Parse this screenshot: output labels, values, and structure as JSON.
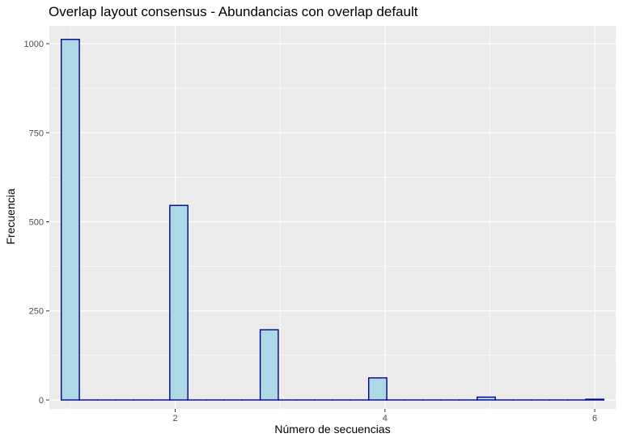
{
  "chart_data": {
    "type": "bar",
    "title": "Overlap layout consensus - Abundancias con overlap default",
    "xlabel": "Número de secuencias",
    "ylabel": "Frecuencia",
    "xlim": [
      0.8,
      6.2
    ],
    "ylim": [
      -25,
      1050
    ],
    "x_ticks": [
      2,
      4,
      6
    ],
    "x_tick_labels": [
      "2",
      "4",
      "6"
    ],
    "y_ticks": [
      0,
      250,
      500,
      750,
      1000
    ],
    "y_tick_labels": [
      "0",
      "250",
      "500",
      "750",
      "1000"
    ],
    "bin_width": 0.1724,
    "bins": [
      {
        "x": 1.0,
        "count": 1012
      },
      {
        "x": 1.1724,
        "count": 0
      },
      {
        "x": 1.3448,
        "count": 0
      },
      {
        "x": 1.5172,
        "count": 0
      },
      {
        "x": 1.6897,
        "count": 0
      },
      {
        "x": 1.8621,
        "count": 0
      },
      {
        "x": 2.0345,
        "count": 546
      },
      {
        "x": 2.2069,
        "count": 0
      },
      {
        "x": 2.3793,
        "count": 0
      },
      {
        "x": 2.5517,
        "count": 0
      },
      {
        "x": 2.7241,
        "count": 0
      },
      {
        "x": 2.8966,
        "count": 197
      },
      {
        "x": 3.069,
        "count": 0
      },
      {
        "x": 3.2414,
        "count": 0
      },
      {
        "x": 3.4138,
        "count": 0
      },
      {
        "x": 3.5862,
        "count": 0
      },
      {
        "x": 3.7586,
        "count": 0
      },
      {
        "x": 3.931,
        "count": 62
      },
      {
        "x": 4.1034,
        "count": 0
      },
      {
        "x": 4.2759,
        "count": 0
      },
      {
        "x": 4.4483,
        "count": 0
      },
      {
        "x": 4.6207,
        "count": 0
      },
      {
        "x": 4.7931,
        "count": 0
      },
      {
        "x": 4.9655,
        "count": 8
      },
      {
        "x": 5.1379,
        "count": 0
      },
      {
        "x": 5.3103,
        "count": 0
      },
      {
        "x": 5.4828,
        "count": 0
      },
      {
        "x": 5.6552,
        "count": 0
      },
      {
        "x": 5.8276,
        "count": 0
      },
      {
        "x": 6.0,
        "count": 2
      }
    ],
    "fill_color": "#add8e6",
    "outline_color": "#00008b",
    "panel_background": "#ebebeb",
    "gridline_color": "#ffffff"
  }
}
